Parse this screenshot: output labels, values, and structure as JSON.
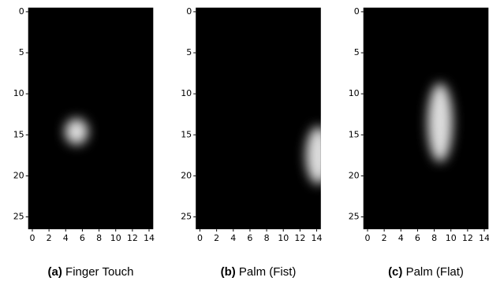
{
  "chart_data": [
    {
      "type": "image",
      "caption": {
        "label": "(a)",
        "text": "Finger Touch"
      },
      "xlim": [
        -0.5,
        14.5
      ],
      "ylim": [
        -0.5,
        26.5
      ],
      "invert_y": true,
      "xticks": [
        0,
        2,
        4,
        6,
        8,
        10,
        12,
        14
      ],
      "yticks": [
        0,
        5,
        10,
        15,
        20,
        25
      ],
      "blobs": [
        {
          "x": 5.3,
          "y": 14.6,
          "rx": 1.4,
          "ry": 1.6
        }
      ]
    },
    {
      "type": "image",
      "caption": {
        "label": "(b)",
        "text": "Palm (Fist)"
      },
      "xlim": [
        -0.5,
        14.5
      ],
      "ylim": [
        -0.5,
        26.5
      ],
      "invert_y": true,
      "xticks": [
        0,
        2,
        4,
        6,
        8,
        10,
        12,
        14
      ],
      "yticks": [
        0,
        5,
        10,
        15,
        20,
        25
      ],
      "blobs": [
        {
          "x": 14.2,
          "y": 17.5,
          "rx": 1.5,
          "ry": 3.5
        }
      ]
    },
    {
      "type": "image",
      "caption": {
        "label": "(c)",
        "text": "Palm (Flat)"
      },
      "xlim": [
        -0.5,
        14.5
      ],
      "ylim": [
        -0.5,
        26.5
      ],
      "invert_y": true,
      "xticks": [
        0,
        2,
        4,
        6,
        8,
        10,
        12,
        14
      ],
      "yticks": [
        0,
        5,
        10,
        15,
        20,
        25
      ],
      "blobs": [
        {
          "x": 8.7,
          "y": 13.5,
          "rx": 1.5,
          "ry": 4.8
        }
      ]
    }
  ]
}
